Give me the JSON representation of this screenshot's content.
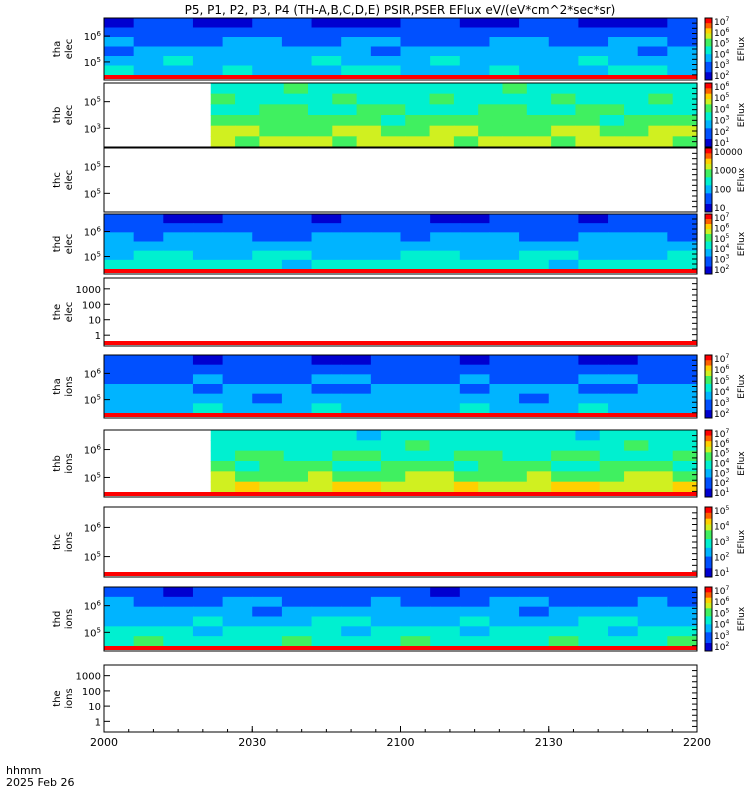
{
  "title": "P5, P1, P2, P3, P4 (TH-A,B,C,D,E) PSIR,PSER EFlux eV/(eV*cm^2*sec*sr)",
  "time_label_left": "hhmm",
  "date_label": "2025 Feb 26",
  "x_ticks": [
    "2000",
    "2030",
    "2100",
    "2130",
    "2200"
  ],
  "colorbar_title": "EFlux",
  "chart_data": {
    "type": "heatmap",
    "x_range": [
      "20:00",
      "22:00"
    ],
    "colors": {
      "red_band": "#ff0000",
      "white_gap": "#ffffff"
    },
    "panels": [
      {
        "label_line1": "tha",
        "label_line2": "elec",
        "y_ticks": [
          "10^6",
          "10^5"
        ],
        "cbar_ticks": [
          "10^7",
          "10^6",
          "10^5",
          "10^4",
          "10^3",
          "10^2"
        ],
        "blank": false,
        "start_fraction": 0.0,
        "spectrum": [
          0.12,
          0.2,
          0.28,
          0.34,
          0.38,
          0.4
        ],
        "bottom_band": true
      },
      {
        "label_line1": "thb",
        "label_line2": "elec",
        "y_ticks": [
          "10^5",
          "10^3"
        ],
        "cbar_ticks": [
          "10^6",
          "10^5",
          "10^4",
          "10^3",
          "10^2",
          "10^1"
        ],
        "blank": false,
        "start_fraction": 0.18,
        "spectrum": [
          0.5,
          0.52,
          0.55,
          0.6,
          0.66,
          0.7
        ],
        "bottom_band": false
      },
      {
        "label_line1": "thc",
        "label_line2": "elec",
        "y_ticks": [
          "10^5",
          "10^5"
        ],
        "cbar_ticks": [
          "10000",
          "1000",
          "100",
          "10"
        ],
        "blank": true,
        "start_fraction": 0.0,
        "spectrum": [],
        "bottom_band": false
      },
      {
        "label_line1": "thd",
        "label_line2": "elec",
        "y_ticks": [
          "10^6",
          "10^5"
        ],
        "cbar_ticks": [
          "10^7",
          "10^6",
          "10^5",
          "10^4",
          "10^3",
          "10^2"
        ],
        "blank": false,
        "start_fraction": 0.0,
        "spectrum": [
          0.14,
          0.22,
          0.3,
          0.36,
          0.42,
          0.48
        ],
        "bottom_band": true
      },
      {
        "label_line1": "the",
        "label_line2": "elec",
        "y_ticks": [
          "1000",
          "100",
          "10",
          "1"
        ],
        "cbar_ticks": [],
        "blank": true,
        "start_fraction": 0.0,
        "spectrum": [],
        "bottom_band": true
      },
      {
        "label_line1": "tha",
        "label_line2": "ions",
        "y_ticks": [
          "10^6",
          "10^5"
        ],
        "cbar_ticks": [
          "10^7",
          "10^6",
          "10^5",
          "10^4",
          "10^3",
          "10^2"
        ],
        "blank": false,
        "start_fraction": 0.0,
        "spectrum": [
          0.14,
          0.2,
          0.26,
          0.3,
          0.34,
          0.38
        ],
        "bottom_band": true
      },
      {
        "label_line1": "thb",
        "label_line2": "ions",
        "y_ticks": [
          "10^6",
          "10^5"
        ],
        "cbar_ticks": [
          "10^7",
          "10^6",
          "10^5",
          "10^4",
          "10^3",
          "10^2",
          "10^1"
        ],
        "blank": false,
        "start_fraction": 0.18,
        "spectrum": [
          0.48,
          0.5,
          0.54,
          0.58,
          0.64,
          0.74
        ],
        "bottom_band": true
      },
      {
        "label_line1": "thc",
        "label_line2": "ions",
        "y_ticks": [
          "10^6",
          "10^5"
        ],
        "cbar_ticks": [
          "10^5",
          "10^4",
          "10^3",
          "10^2",
          "10^1"
        ],
        "blank": true,
        "start_fraction": 0.0,
        "spectrum": [],
        "bottom_band": true
      },
      {
        "label_line1": "thd",
        "label_line2": "ions",
        "y_ticks": [
          "10^6",
          "10^5"
        ],
        "cbar_ticks": [
          "10^7",
          "10^6",
          "10^5",
          "10^4",
          "10^3",
          "10^2"
        ],
        "blank": false,
        "start_fraction": 0.0,
        "spectrum": [
          0.18,
          0.26,
          0.34,
          0.4,
          0.46,
          0.52
        ],
        "bottom_band": true
      },
      {
        "label_line1": "the",
        "label_line2": "ions",
        "y_ticks": [
          "1000",
          "100",
          "10",
          "1"
        ],
        "cbar_ticks": [],
        "blank": true,
        "start_fraction": 0.0,
        "spectrum": [],
        "bottom_band": false
      }
    ]
  }
}
